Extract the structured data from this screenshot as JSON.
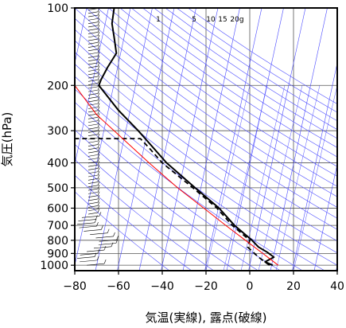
{
  "chart_data": {
    "type": "line",
    "title": "",
    "xlabel": "気温(実線), 露点(破線)",
    "ylabel": "気圧(hPa)",
    "xlim": [
      -80,
      40
    ],
    "ylim": [
      1050,
      100
    ],
    "y_scale": "log",
    "x_ticks": [
      -80,
      -60,
      -40,
      -20,
      0,
      20,
      40
    ],
    "x_tick_labels": [
      "−80",
      "−60",
      "−40",
      "−20",
      "0",
      "20",
      "40"
    ],
    "y_ticks": [
      100,
      200,
      300,
      400,
      500,
      600,
      700,
      800,
      900,
      1000
    ],
    "y_tick_labels": [
      "100",
      "200",
      "300",
      "400",
      "500",
      "600",
      "700",
      "800",
      "900",
      "1000"
    ],
    "grid": true,
    "mixing_ratio_labels": [
      "1",
      "5",
      "10",
      "15",
      "20g"
    ],
    "colors": {
      "temperature": "#000000",
      "dewpoint": "#000000",
      "parcel": "#ff0000",
      "background_lines": "#4a4aff",
      "grid": "#555555"
    },
    "series": [
      {
        "name": "気温",
        "style": "solid",
        "points": [
          {
            "p": 1000,
            "t": 10.5
          },
          {
            "p": 970,
            "t": 7
          },
          {
            "p": 930,
            "t": 11
          },
          {
            "p": 890,
            "t": 8
          },
          {
            "p": 850,
            "t": 4
          },
          {
            "p": 800,
            "t": 1
          },
          {
            "p": 700,
            "t": -7
          },
          {
            "p": 600,
            "t": -14
          },
          {
            "p": 500,
            "t": -25
          },
          {
            "p": 400,
            "t": -38
          },
          {
            "p": 300,
            "t": -51
          },
          {
            "p": 250,
            "t": -60
          },
          {
            "p": 200,
            "t": -69
          },
          {
            "p": 190,
            "t": -68
          },
          {
            "p": 170,
            "t": -65
          },
          {
            "p": 150,
            "t": -61
          },
          {
            "p": 130,
            "t": -62
          },
          {
            "p": 115,
            "t": -63
          },
          {
            "p": 100,
            "t": -62
          }
        ]
      },
      {
        "name": "露点",
        "style": "dashed",
        "points": [
          {
            "p": 1000,
            "t": 9
          },
          {
            "p": 930,
            "t": 4
          },
          {
            "p": 850,
            "t": -1
          },
          {
            "p": 800,
            "t": 0
          },
          {
            "p": 700,
            "t": -8
          },
          {
            "p": 600,
            "t": -15
          },
          {
            "p": 500,
            "t": -26
          },
          {
            "p": 400,
            "t": -40
          },
          {
            "p": 350,
            "t": -46
          },
          {
            "p": 322,
            "t": -50
          },
          {
            "p": 322,
            "t": -80
          }
        ]
      },
      {
        "name": "parcel",
        "style": "solid-red",
        "points": [
          {
            "p": 1000,
            "t": 13
          },
          {
            "p": 900,
            "t": 6
          },
          {
            "p": 800,
            "t": -2
          },
          {
            "p": 700,
            "t": -11
          },
          {
            "p": 600,
            "t": -21
          },
          {
            "p": 500,
            "t": -33
          },
          {
            "p": 400,
            "t": -46
          },
          {
            "p": 300,
            "t": -62
          },
          {
            "p": 260,
            "t": -70
          },
          {
            "p": 200,
            "t": -80
          }
        ]
      }
    ]
  }
}
